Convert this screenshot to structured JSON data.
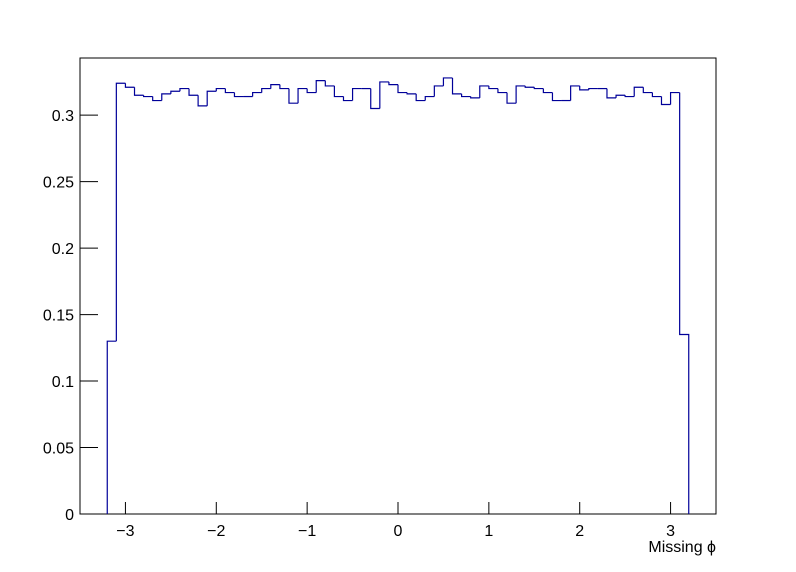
{
  "chart_data": {
    "type": "histogram",
    "x_label": "Missing ϕ",
    "color": "#000099",
    "bins": [
      -3.2,
      -3.1,
      -3.0,
      -2.9,
      -2.8,
      -2.7,
      -2.6,
      -2.5,
      -2.4,
      -2.3,
      -2.2,
      -2.1,
      -2.0,
      -1.9,
      -1.8,
      -1.7,
      -1.6,
      -1.5,
      -1.4,
      -1.3,
      -1.2,
      -1.1,
      -1.0,
      -0.9,
      -0.8,
      -0.7,
      -0.6,
      -0.5,
      -0.4,
      -0.3,
      -0.2,
      -0.1,
      0.0,
      0.1,
      0.2,
      0.3,
      0.4,
      0.5,
      0.6,
      0.7,
      0.8,
      0.9,
      1.0,
      1.1,
      1.2,
      1.3,
      1.4,
      1.5,
      1.6,
      1.7,
      1.8,
      1.9,
      2.0,
      2.1,
      2.2,
      2.3,
      2.4,
      2.5,
      2.6,
      2.7,
      2.8,
      2.9,
      3.0,
      3.1,
      3.2
    ],
    "values": [
      0.13,
      0.324,
      0.321,
      0.315,
      0.314,
      0.311,
      0.316,
      0.318,
      0.32,
      0.315,
      0.307,
      0.318,
      0.32,
      0.317,
      0.314,
      0.314,
      0.317,
      0.32,
      0.323,
      0.32,
      0.309,
      0.32,
      0.317,
      0.326,
      0.322,
      0.314,
      0.311,
      0.32,
      0.32,
      0.305,
      0.325,
      0.323,
      0.317,
      0.316,
      0.311,
      0.314,
      0.322,
      0.328,
      0.316,
      0.314,
      0.313,
      0.322,
      0.32,
      0.317,
      0.309,
      0.322,
      0.321,
      0.32,
      0.317,
      0.311,
      0.311,
      0.322,
      0.319,
      0.32,
      0.32,
      0.313,
      0.315,
      0.314,
      0.321,
      0.317,
      0.314,
      0.308,
      0.317,
      0.135
    ],
    "xlim": [
      -3.5,
      3.5
    ],
    "ylim": [
      0,
      0.343
    ],
    "xticks": [
      {
        "value": -3,
        "label": "−3"
      },
      {
        "value": -2,
        "label": "−2"
      },
      {
        "value": -1,
        "label": "−1"
      },
      0,
      1,
      2,
      3
    ],
    "yticks": [
      0,
      0.05,
      0.1,
      0.15,
      0.2,
      0.25,
      0.3
    ]
  }
}
